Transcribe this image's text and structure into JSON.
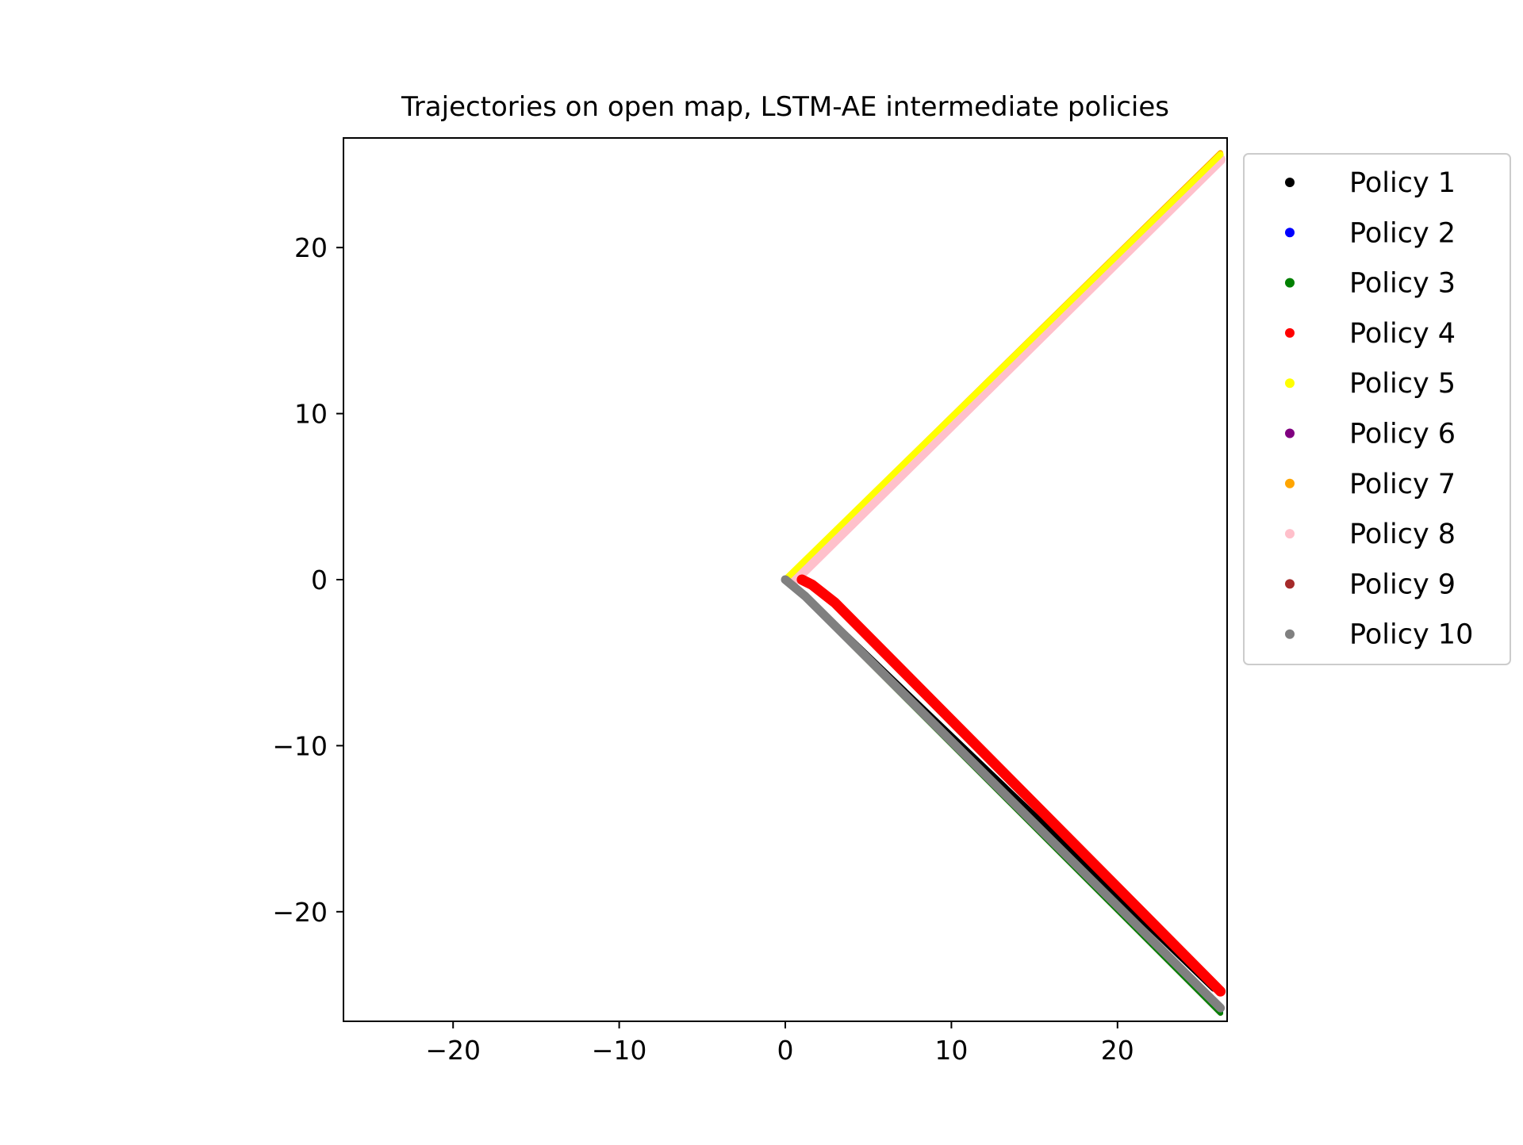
{
  "chart_data": {
    "type": "scatter",
    "title": "Trajectories on open map, LSTM-AE intermediate policies",
    "xlabel": "",
    "ylabel": "",
    "xlim": [
      -26.6,
      26.6
    ],
    "ylim": [
      -26.6,
      26.6
    ],
    "xticks": [
      -20,
      -10,
      0,
      10,
      20
    ],
    "yticks": [
      -20,
      -10,
      0,
      10,
      20
    ],
    "xtick_labels": [
      "−20",
      "−10",
      "0",
      "10",
      "20"
    ],
    "ytick_labels": [
      "−20",
      "−10",
      "0",
      "10",
      "20"
    ],
    "grid": false,
    "legend_position": "outside-right-top",
    "series": [
      {
        "name": "Policy 1",
        "color": "#000000",
        "points": [
          [
            0,
            0
          ],
          [
            1.5,
            -1.3
          ],
          [
            25.8,
            -24.6
          ]
        ]
      },
      {
        "name": "Policy 2",
        "color": "#0000ff",
        "points": [
          [
            0,
            0
          ],
          [
            1.2,
            -1.1
          ],
          [
            26.2,
            -26.0
          ]
        ]
      },
      {
        "name": "Policy 3",
        "color": "#008000",
        "points": [
          [
            0,
            0
          ],
          [
            1.0,
            -0.9
          ],
          [
            26.2,
            -26.1
          ]
        ]
      },
      {
        "name": "Policy 4",
        "color": "#ff0000",
        "points": [
          [
            1.0,
            0
          ],
          [
            1.6,
            -0.3
          ],
          [
            3.0,
            -1.4
          ],
          [
            26.2,
            -24.8
          ]
        ]
      },
      {
        "name": "Policy 5",
        "color": "#ffff00",
        "points": [
          [
            0,
            0
          ],
          [
            26.2,
            25.6
          ]
        ]
      },
      {
        "name": "Policy 6",
        "color": "#800080",
        "points": [
          [
            0,
            0
          ],
          [
            1.2,
            -1.1
          ],
          [
            26.2,
            -26.0
          ]
        ]
      },
      {
        "name": "Policy 7",
        "color": "#ffa500",
        "points": [
          [
            0,
            0
          ],
          [
            26.2,
            25.7
          ]
        ]
      },
      {
        "name": "Policy 8",
        "color": "#ffc0cb",
        "points": [
          [
            0.6,
            0
          ],
          [
            26.2,
            25.3
          ]
        ]
      },
      {
        "name": "Policy 9",
        "color": "#a52a2a",
        "points": [
          [
            0,
            0
          ],
          [
            1.2,
            -1.1
          ],
          [
            26.2,
            -26.1
          ]
        ]
      },
      {
        "name": "Policy 10",
        "color": "#808080",
        "points": [
          [
            0,
            0
          ],
          [
            1.2,
            -1.0
          ],
          [
            26.2,
            -25.8
          ]
        ]
      }
    ]
  }
}
